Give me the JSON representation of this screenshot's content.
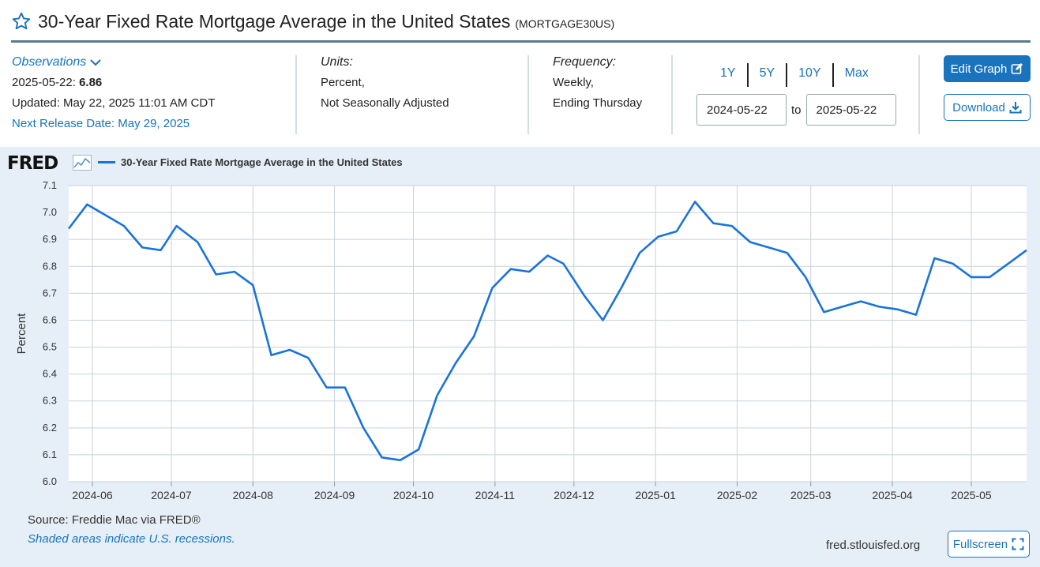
{
  "header": {
    "title": "30-Year Fixed Rate Mortgage Average in the United States",
    "series_id": "(MORTGAGE30US)"
  },
  "observations": {
    "label": "Observations",
    "date": "2025-05-22:",
    "value": "6.86",
    "updated": "Updated: May 22, 2025 11:01 AM CDT",
    "next_release": "Next Release Date: May 29, 2025"
  },
  "units": {
    "label": "Units:",
    "line1": "Percent,",
    "line2": "Not Seasonally Adjusted"
  },
  "frequency": {
    "label": "Frequency:",
    "line1": "Weekly,",
    "line2": "Ending Thursday"
  },
  "range_buttons": [
    "1Y",
    "5Y",
    "10Y",
    "Max"
  ],
  "date_range": {
    "start": "2024-05-22",
    "to": "to",
    "end": "2025-05-22"
  },
  "buttons": {
    "edit": "Edit Graph",
    "download": "Download",
    "fullscreen": "Fullscreen"
  },
  "footer": {
    "source": "Source: Freddie Mac via FRED®",
    "recessions": "Shaded areas indicate U.S. recessions.",
    "site": "fred.stlouisfed.org"
  },
  "logo_text": "FRED",
  "colors": {
    "line": "#1a73d9",
    "accent": "#1a73bd",
    "panel": "#e6eff7"
  },
  "chart_data": {
    "type": "line",
    "title": "",
    "ylabel": "Percent",
    "xlabel": "",
    "ylim": [
      6.0,
      7.1
    ],
    "yticks": [
      "6.0",
      "6.1",
      "6.2",
      "6.3",
      "6.4",
      "6.5",
      "6.6",
      "6.7",
      "6.8",
      "6.9",
      "7.0",
      "7.1"
    ],
    "xlim": [
      "2024-05-23",
      "2025-05-22"
    ],
    "xticks": [
      {
        "label": "2024-06",
        "date": "2024-06-01"
      },
      {
        "label": "2024-07",
        "date": "2024-07-01"
      },
      {
        "label": "2024-08",
        "date": "2024-08-01"
      },
      {
        "label": "2024-09",
        "date": "2024-09-01"
      },
      {
        "label": "2024-10",
        "date": "2024-10-01"
      },
      {
        "label": "2024-11",
        "date": "2024-11-01"
      },
      {
        "label": "2024-12",
        "date": "2024-12-01"
      },
      {
        "label": "2025-01",
        "date": "2025-01-01"
      },
      {
        "label": "2025-02",
        "date": "2025-02-01"
      },
      {
        "label": "2025-03",
        "date": "2025-03-01"
      },
      {
        "label": "2025-04",
        "date": "2025-04-01"
      },
      {
        "label": "2025-05",
        "date": "2025-05-01"
      }
    ],
    "grid": true,
    "legend": "top-left",
    "series": [
      {
        "name": "30-Year Fixed Rate Mortgage Average in the United States",
        "x": [
          "2024-05-23",
          "2024-05-30",
          "2024-06-06",
          "2024-06-13",
          "2024-06-20",
          "2024-06-27",
          "2024-07-03",
          "2024-07-11",
          "2024-07-18",
          "2024-07-25",
          "2024-08-01",
          "2024-08-08",
          "2024-08-15",
          "2024-08-22",
          "2024-08-29",
          "2024-09-05",
          "2024-09-12",
          "2024-09-19",
          "2024-09-26",
          "2024-10-03",
          "2024-10-10",
          "2024-10-17",
          "2024-10-24",
          "2024-10-31",
          "2024-11-07",
          "2024-11-14",
          "2024-11-21",
          "2024-11-27",
          "2024-12-05",
          "2024-12-12",
          "2024-12-19",
          "2024-12-26",
          "2025-01-02",
          "2025-01-09",
          "2025-01-16",
          "2025-01-23",
          "2025-01-30",
          "2025-02-06",
          "2025-02-13",
          "2025-02-20",
          "2025-02-27",
          "2025-03-06",
          "2025-03-13",
          "2025-03-20",
          "2025-03-27",
          "2025-04-03",
          "2025-04-10",
          "2025-04-17",
          "2025-04-24",
          "2025-05-01",
          "2025-05-08",
          "2025-05-15",
          "2025-05-22"
        ],
        "values": [
          6.94,
          7.03,
          6.99,
          6.95,
          6.87,
          6.86,
          6.95,
          6.89,
          6.77,
          6.78,
          6.73,
          6.47,
          6.49,
          6.46,
          6.35,
          6.35,
          6.2,
          6.09,
          6.08,
          6.12,
          6.32,
          6.44,
          6.54,
          6.72,
          6.79,
          6.78,
          6.84,
          6.81,
          6.69,
          6.6,
          6.72,
          6.85,
          6.91,
          6.93,
          7.04,
          6.96,
          6.95,
          6.89,
          6.87,
          6.85,
          6.76,
          6.63,
          6.65,
          6.67,
          6.65,
          6.64,
          6.62,
          6.83,
          6.81,
          6.76,
          6.76,
          6.81,
          6.86
        ]
      }
    ]
  }
}
